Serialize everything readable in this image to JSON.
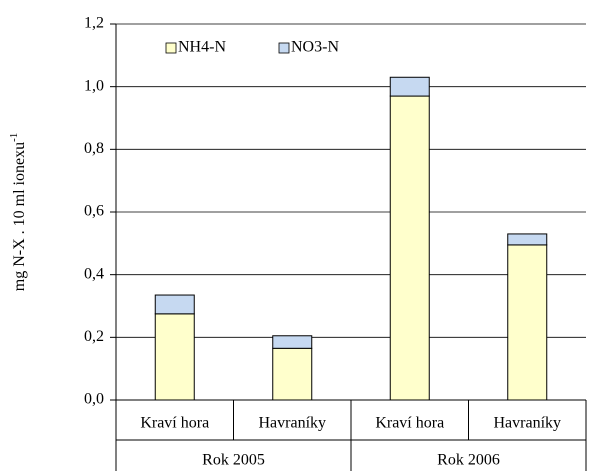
{
  "chart_data": {
    "type": "stacked_bar",
    "y_label": "mg N-X . 10 ml ionexu",
    "y_label_sup": "-1",
    "categories": [
      "Kraví hora",
      "Havraníky",
      "Kraví hora",
      "Havraníky"
    ],
    "group_labels": [
      "Rok 2005",
      "Rok 2006"
    ],
    "series": [
      {
        "name": "NH4-N",
        "color": "#ffffcc",
        "values": [
          0.275,
          0.165,
          0.97,
          0.495
        ]
      },
      {
        "name": "NO3-N",
        "color": "#c6d9f1",
        "values": [
          0.06,
          0.04,
          0.06,
          0.035
        ]
      }
    ],
    "ylim": [
      0,
      1.2
    ],
    "yticks": [
      {
        "value": 0,
        "label": "0,0"
      },
      {
        "value": 0.2,
        "label": "0,2"
      },
      {
        "value": 0.4,
        "label": "0,4"
      },
      {
        "value": 0.6,
        "label": "0,6"
      },
      {
        "value": 0.8,
        "label": "0,8"
      },
      {
        "value": 1.0,
        "label": "1,0"
      },
      {
        "value": 1.2,
        "label": "1,2"
      }
    ],
    "grid": true,
    "legend": "top-left"
  }
}
